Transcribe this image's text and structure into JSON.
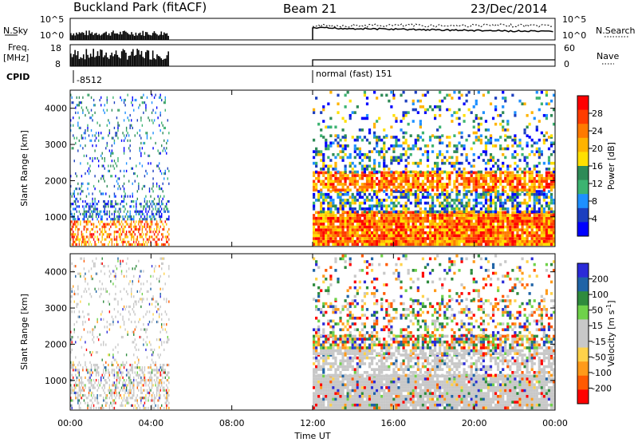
{
  "header": {
    "station": "Buckland Park (fitACF)",
    "beam": "Beam 21",
    "date": "23/Dec/2014"
  },
  "panels": {
    "nsky": {
      "left_label": "N.Sky",
      "right_label": "N.Search",
      "left_ticks": [
        "10^5",
        "10^0"
      ],
      "right_ticks": [
        "10^5",
        "10^0"
      ]
    },
    "freq": {
      "left_label_1": "Freq.",
      "left_label_2": "[MHz]",
      "right_label": "Nave",
      "left_ticks": [
        "18",
        "8"
      ],
      "right_ticks": [
        "60",
        "0"
      ]
    },
    "cpid": {
      "label": "CPID",
      "entries": [
        "-8512",
        "normal (fast) 151"
      ]
    }
  },
  "colorbars": {
    "power": {
      "label": "Power [dB]",
      "ticks": [
        "28",
        "24",
        "20",
        "16",
        "12",
        "8",
        "4"
      ],
      "colors": [
        "#ff0000",
        "#ff3c00",
        "#ff7a00",
        "#ffb300",
        "#ffe000",
        "#2e8b57",
        "#3cb371",
        "#1e90ff",
        "#1c3fbf",
        "#0000ff"
      ]
    },
    "velocity": {
      "label_main": "Velocity [m s",
      "label_exp": "-1",
      "label_close": "]",
      "ticks": [
        "200",
        "100",
        "50",
        "15",
        "-15",
        "-50",
        "-100",
        "-200"
      ],
      "colors": [
        "#2b2bd8",
        "#1f63a6",
        "#2e8b3d",
        "#6fd24a",
        "#c8c8c8",
        "#c8c8c8",
        "#ffd24a",
        "#ff9a1a",
        "#ff5a00",
        "#ff0000"
      ]
    }
  },
  "chart_data": [
    {
      "type": "heatmap",
      "title": "Power",
      "ylabel": "Slant Range [km]",
      "xlabel": "Time UT",
      "xlim": [
        "00:00",
        "24:00"
      ],
      "ylim": [
        180,
        4500
      ],
      "x_ticks": [
        "00:00",
        "04:00",
        "08:00",
        "12:00",
        "16:00",
        "20:00",
        "00:00"
      ],
      "y_ticks": [
        1000,
        2000,
        3000,
        4000
      ],
      "colorbar": "Power [dB]",
      "data_regions_hours": [
        [
          0.0,
          4.9
        ],
        [
          12.0,
          24.0
        ]
      ]
    },
    {
      "type": "heatmap",
      "title": "Velocity",
      "ylabel": "Slant Range [km]",
      "xlabel": "Time UT",
      "xlim": [
        "00:00",
        "24:00"
      ],
      "ylim": [
        180,
        4500
      ],
      "x_ticks": [
        "00:00",
        "04:00",
        "08:00",
        "12:00",
        "16:00",
        "20:00",
        "00:00"
      ],
      "y_ticks": [
        1000,
        2000,
        3000,
        4000
      ],
      "colorbar": "Velocity [m s-1]",
      "data_regions_hours": [
        [
          0.0,
          4.9
        ],
        [
          12.0,
          24.0
        ]
      ]
    }
  ]
}
